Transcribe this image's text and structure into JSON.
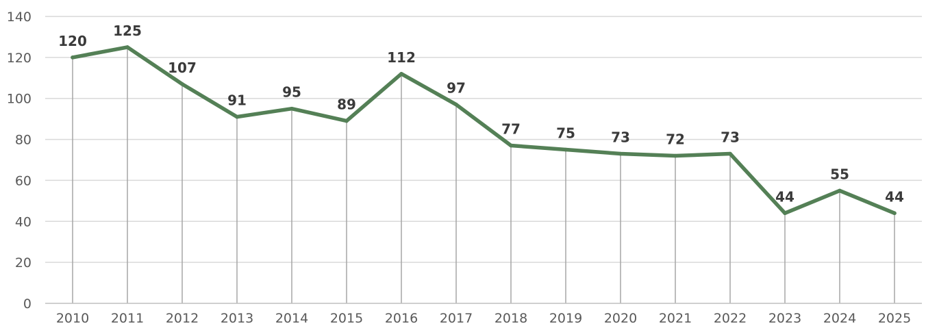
{
  "chart_data": {
    "type": "line",
    "title": "",
    "xlabel": "",
    "ylabel": "",
    "ylim": [
      0,
      140
    ],
    "yticks": [
      0,
      20,
      40,
      60,
      80,
      100,
      120,
      140
    ],
    "grid": "horizontal",
    "drop_lines": true,
    "legend": "none",
    "categories": [
      "2010",
      "2011",
      "2012",
      "2013",
      "2014",
      "2015",
      "2016",
      "2017",
      "2018",
      "2019",
      "2020",
      "2021",
      "2022",
      "2023",
      "2024",
      "2025"
    ],
    "series": [
      {
        "values": [
          120,
          125,
          107,
          91,
          95,
          89,
          112,
          97,
          77,
          75,
          73,
          72,
          73,
          44,
          55,
          44
        ],
        "color": "#548056"
      }
    ]
  }
}
